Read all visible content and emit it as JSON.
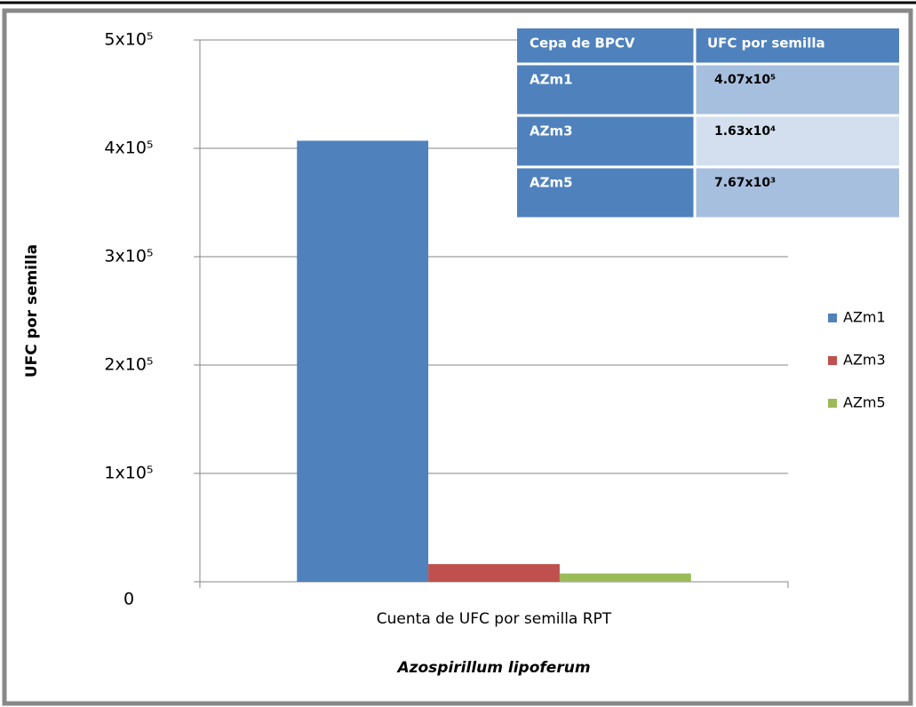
{
  "chart_data": {
    "type": "bar",
    "categories": [
      "Cuenta de UFC por semilla RPT"
    ],
    "x_label": "Azospirillum lipoferum",
    "y_label": "UFC por semilla",
    "series": [
      {
        "name": "AZm1",
        "color": "#4f81bd",
        "values": [
          407000
        ],
        "value_labels": [
          "4.07x10⁵"
        ]
      },
      {
        "name": "AZm3",
        "color": "#c0504d",
        "values": [
          16300
        ],
        "value_labels": [
          "1.63x10⁴"
        ]
      },
      {
        "name": "AZm5",
        "color": "#9bbb59",
        "values": [
          7670
        ],
        "value_labels": [
          "7.67x10³"
        ]
      }
    ],
    "ylim": [
      0,
      500000
    ],
    "yticks": [
      0,
      {
        "value": 100000,
        "label": "1x10⁵"
      },
      {
        "value": 200000,
        "label": "2x10⁵"
      },
      {
        "value": 300000,
        "label": "3x10⁵"
      },
      {
        "value": 400000,
        "label": "4x10⁵"
      },
      {
        "value": 500000,
        "label": "5x10⁵"
      }
    ],
    "grid": true,
    "legend": "right",
    "table_header": [
      "Cepa de BPCV",
      "UFC por semilla"
    ]
  }
}
